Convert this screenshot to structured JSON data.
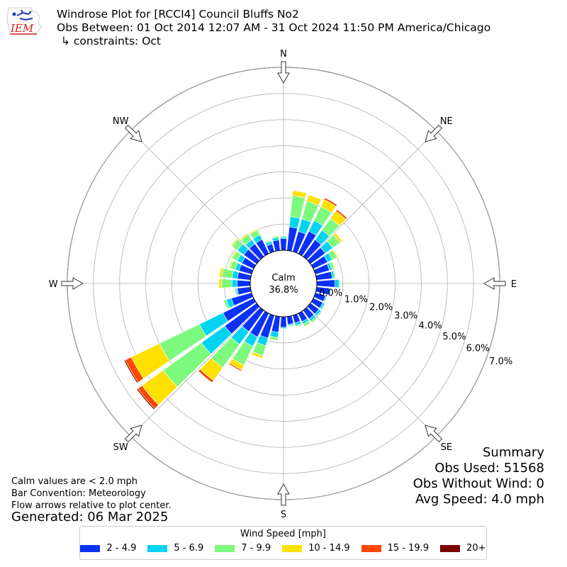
{
  "header": {
    "line1": "Windrose Plot for [RCCI4] Council Bluffs No2",
    "line2": "Obs Between: 01 Oct 2014 12:07 AM - 31 Oct 2024 11:50 PM America/Chicago",
    "line3": "↳ constraints: Oct",
    "logo_text": "IEM"
  },
  "notes": {
    "calm_note": "Calm values are < 2.0 mph",
    "bar_convention": "Bar Convention: Meteorology",
    "flow_note": "Flow arrows relative to plot center.",
    "generated": "Generated: 06 Mar 2025"
  },
  "summary": {
    "title": "Summary",
    "obs_used": "Obs Used: 51568",
    "obs_without_wind": "Obs Without Wind: 0",
    "avg_speed": "Avg Speed: 4.0 mph"
  },
  "legend": {
    "title": "Wind Speed [mph]"
  },
  "chart_data": {
    "type": "windrose",
    "calm_label": "Calm",
    "calm_value": "36.8%",
    "directions": [
      "N",
      "NE",
      "E",
      "SE",
      "S",
      "SW",
      "W",
      "NW"
    ],
    "radial_ticks": [
      "0.0%",
      "1.0%",
      "2.0%",
      "3.0%",
      "4.0%",
      "5.0%",
      "6.0%",
      "7.0%"
    ],
    "rmax": 7.0,
    "sectors": 36,
    "speed_bins": [
      {
        "name": "2 - 4.9",
        "color": "#0a31f5"
      },
      {
        "name": "5 - 6.9",
        "color": "#00d4f0"
      },
      {
        "name": "7 - 9.9",
        "color": "#7dfa7d"
      },
      {
        "name": "10 - 14.9",
        "color": "#ffe100"
      },
      {
        "name": "15 - 19.9",
        "color": "#ff4600"
      },
      {
        "name": "20+",
        "color": "#7d0000"
      }
    ],
    "data": [
      {
        "dir": 0,
        "values": [
          0.45,
          0.05,
          0.05,
          0.0,
          0.0,
          0.0
        ]
      },
      {
        "dir": 10,
        "values": [
          0.9,
          0.4,
          0.8,
          0.2,
          0.0,
          0.0
        ]
      },
      {
        "dir": 20,
        "values": [
          0.8,
          0.5,
          0.7,
          0.25,
          0.0,
          0.0
        ]
      },
      {
        "dir": 30,
        "values": [
          0.95,
          0.45,
          0.6,
          0.3,
          0.07,
          0.0
        ]
      },
      {
        "dir": 40,
        "values": [
          0.8,
          0.45,
          0.55,
          0.35,
          0.07,
          0.0
        ]
      },
      {
        "dir": 50,
        "values": [
          0.7,
          0.35,
          0.35,
          0.1,
          0.0,
          0.0
        ]
      },
      {
        "dir": 60,
        "values": [
          0.6,
          0.2,
          0.2,
          0.04,
          0.0,
          0.0
        ]
      },
      {
        "dir": 70,
        "values": [
          0.55,
          0.1,
          0.1,
          0.03,
          0.0,
          0.0
        ]
      },
      {
        "dir": 80,
        "values": [
          0.6,
          0.08,
          0.05,
          0.0,
          0.0,
          0.0
        ]
      },
      {
        "dir": 90,
        "values": [
          0.7,
          0.15,
          0.05,
          0.0,
          0.0,
          0.0
        ]
      },
      {
        "dir": 100,
        "values": [
          0.5,
          0.05,
          0.02,
          0.0,
          0.0,
          0.0
        ]
      },
      {
        "dir": 110,
        "values": [
          0.4,
          0.05,
          0.02,
          0.0,
          0.0,
          0.0
        ]
      },
      {
        "dir": 120,
        "values": [
          0.4,
          0.08,
          0.03,
          0.0,
          0.0,
          0.0
        ]
      },
      {
        "dir": 130,
        "values": [
          0.4,
          0.1,
          0.05,
          0.0,
          0.0,
          0.0
        ]
      },
      {
        "dir": 140,
        "values": [
          0.4,
          0.1,
          0.08,
          0.02,
          0.0,
          0.0
        ]
      },
      {
        "dir": 150,
        "values": [
          0.35,
          0.1,
          0.1,
          0.03,
          0.0,
          0.0
        ]
      },
      {
        "dir": 160,
        "values": [
          0.3,
          0.1,
          0.05,
          0.02,
          0.0,
          0.0
        ]
      },
      {
        "dir": 170,
        "values": [
          0.3,
          0.05,
          0.03,
          0.0,
          0.0,
          0.0
        ]
      },
      {
        "dir": 180,
        "values": [
          0.4,
          0.05,
          0.02,
          0.0,
          0.0,
          0.0
        ]
      },
      {
        "dir": 190,
        "values": [
          0.6,
          0.2,
          0.1,
          0.03,
          0.0,
          0.0
        ]
      },
      {
        "dir": 200,
        "values": [
          0.9,
          0.3,
          0.4,
          0.1,
          0.0,
          0.0
        ]
      },
      {
        "dir": 210,
        "values": [
          1.0,
          0.4,
          0.8,
          0.2,
          0.05,
          0.0
        ]
      },
      {
        "dir": 220,
        "values": [
          1.0,
          0.6,
          1.1,
          0.6,
          0.1,
          0.0
        ]
      },
      {
        "dir": 230,
        "values": [
          1.5,
          1.1,
          1.8,
          1.0,
          0.2,
          0.05
        ]
      },
      {
        "dir": 240,
        "values": [
          1.3,
          1.0,
          1.7,
          1.2,
          0.25,
          0.05
        ]
      },
      {
        "dir": 250,
        "values": [
          0.8,
          0.2,
          0.1,
          0.0,
          0.0,
          0.0
        ]
      },
      {
        "dir": 260,
        "values": [
          0.5,
          0.05,
          0.05,
          0.0,
          0.0,
          0.0
        ]
      },
      {
        "dir": 270,
        "values": [
          0.5,
          0.2,
          0.4,
          0.1,
          0.0,
          0.0
        ]
      },
      {
        "dir": 280,
        "values": [
          0.5,
          0.2,
          0.4,
          0.1,
          0.0,
          0.0
        ]
      },
      {
        "dir": 290,
        "values": [
          0.5,
          0.15,
          0.2,
          0.05,
          0.0,
          0.0
        ]
      },
      {
        "dir": 300,
        "values": [
          0.5,
          0.2,
          0.2,
          0.05,
          0.0,
          0.0
        ]
      },
      {
        "dir": 310,
        "values": [
          0.6,
          0.3,
          0.25,
          0.05,
          0.0,
          0.0
        ]
      },
      {
        "dir": 320,
        "values": [
          0.6,
          0.2,
          0.25,
          0.05,
          0.0,
          0.0
        ]
      },
      {
        "dir": 330,
        "values": [
          0.6,
          0.2,
          0.2,
          0.05,
          0.0,
          0.0
        ]
      },
      {
        "dir": 340,
        "values": [
          0.3,
          0.1,
          0.05,
          0.0,
          0.0,
          0.0
        ]
      },
      {
        "dir": 350,
        "values": [
          0.4,
          0.1,
          0.05,
          0.0,
          0.0,
          0.0
        ]
      }
    ]
  }
}
